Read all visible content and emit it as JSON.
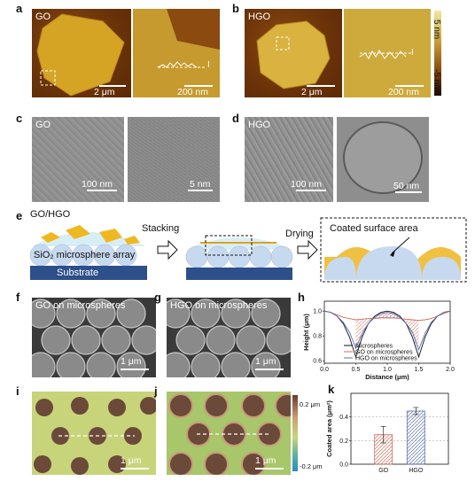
{
  "panels": {
    "a": {
      "letter": "a",
      "label": "GO",
      "scalebar1": "2 μm",
      "scalebar2": "200 nm",
      "profile_mark": "I"
    },
    "b": {
      "letter": "b",
      "label": "HGO",
      "scalebar1": "2 μm",
      "scalebar2": "200 nm",
      "profile_mark": "I"
    },
    "colorbar_ab": {
      "top": "5 nm",
      "bottom": "-5 nm"
    },
    "c": {
      "letter": "c",
      "label": "GO",
      "scalebar1": "100 nm",
      "scalebar2": "5 nm"
    },
    "d": {
      "letter": "d",
      "label": "HGO",
      "scalebar1": "100 nm",
      "scalebar2": "50 nm"
    },
    "e": {
      "letter": "e",
      "label_go_hgo": "GO/HGO",
      "label_array": "SiO₂ microsphere array",
      "label_substrate": "Substrate",
      "step1": "Stacking",
      "step2": "Drying",
      "coated": "Coated surface area"
    },
    "f": {
      "letter": "f",
      "label": "GO on microspheres",
      "scalebar": "1 μm"
    },
    "g": {
      "letter": "g",
      "label": "HGO on microspheres",
      "scalebar": "1 μm"
    },
    "i": {
      "letter": "i",
      "scalebar": "1 μm"
    },
    "j": {
      "letter": "j",
      "scalebar": "1 μm"
    },
    "colorbar_ij": {
      "top": "0.2 μm",
      "bottom": "-0.2 μm"
    },
    "h": {
      "letter": "h"
    },
    "k": {
      "letter": "k"
    }
  },
  "colors": {
    "microspheres": "#111111",
    "go": "#d46a5a",
    "hgo": "#5b6fb0",
    "go_fill": "#e8b0a8",
    "hgo_fill": "#a8b4dc",
    "afm_bg": "#6b3a0e",
    "flake": "#d4a020"
  },
  "chart_data": [
    {
      "type": "line",
      "panel": "h",
      "xlabel": "Distance (μm)",
      "ylabel": "Height (μm)",
      "xlim": [
        0,
        2.0
      ],
      "ylim": [
        0.58,
        1.08
      ],
      "x_ticks": [
        0.0,
        0.5,
        1.0,
        1.5,
        2.0
      ],
      "y_ticks": [
        0.6,
        0.8,
        1.0
      ],
      "x_tick_labels": [
        "0.0",
        "0.5",
        "1.0",
        "1.5",
        "2.0"
      ],
      "y_tick_labels": [
        "0.6",
        "0.8",
        "1.0"
      ],
      "legend": "bottom-center",
      "series": [
        {
          "name": "Microspheres",
          "color": "#111111",
          "x": [
            0,
            0.1,
            0.2,
            0.3,
            0.4,
            0.5,
            0.6,
            0.7,
            0.8,
            0.9,
            1.0,
            1.1,
            1.2,
            1.3,
            1.4,
            1.5,
            1.6,
            1.7,
            1.8,
            1.9,
            2.0
          ],
          "y": [
            1.0,
            0.99,
            0.96,
            0.9,
            0.79,
            0.63,
            0.79,
            0.9,
            0.96,
            0.99,
            1.0,
            0.99,
            0.96,
            0.9,
            0.79,
            0.63,
            0.79,
            0.9,
            0.96,
            0.99,
            1.0
          ]
        },
        {
          "name": "GO on microspheres",
          "color": "#d46a5a",
          "x": [
            0,
            0.1,
            0.2,
            0.3,
            0.4,
            0.5,
            0.6,
            0.7,
            0.8,
            0.9,
            1.0,
            1.1,
            1.2,
            1.3,
            1.4,
            1.5,
            1.6,
            1.7,
            1.8,
            1.9,
            2.0
          ],
          "y": [
            1.0,
            0.99,
            0.97,
            0.95,
            0.94,
            0.93,
            0.935,
            0.94,
            0.94,
            0.945,
            0.945,
            0.945,
            0.94,
            0.935,
            0.93,
            0.925,
            0.93,
            0.94,
            0.96,
            0.98,
            1.0
          ]
        },
        {
          "name": "HGO on microspheres",
          "color": "#5b6fb0",
          "x": [
            0,
            0.1,
            0.2,
            0.3,
            0.4,
            0.5,
            0.6,
            0.7,
            0.8,
            0.9,
            1.0,
            1.1,
            1.2,
            1.3,
            1.4,
            1.5,
            1.6,
            1.7,
            1.8,
            1.9,
            2.0
          ],
          "y": [
            1.0,
            0.99,
            0.96,
            0.91,
            0.83,
            0.7,
            0.82,
            0.9,
            0.95,
            0.98,
            0.99,
            0.98,
            0.95,
            0.9,
            0.83,
            0.69,
            0.82,
            0.91,
            0.96,
            0.99,
            1.0
          ]
        }
      ]
    },
    {
      "type": "bar",
      "panel": "k",
      "categories": [
        "GO",
        "HGO"
      ],
      "values": [
        0.25,
        0.45
      ],
      "errors": [
        0.07,
        0.03
      ],
      "ylabel": "Coated area (μm²)",
      "ylim": [
        0,
        0.6
      ],
      "y_ticks": [
        0.0,
        0.2,
        0.4
      ],
      "y_tick_labels": [
        "0.0",
        "0.2",
        "0.4"
      ],
      "colors": [
        "#d46a5a",
        "#5b6fb0"
      ],
      "grid": "dashed horizontal at 0.2 and 0.4"
    }
  ]
}
